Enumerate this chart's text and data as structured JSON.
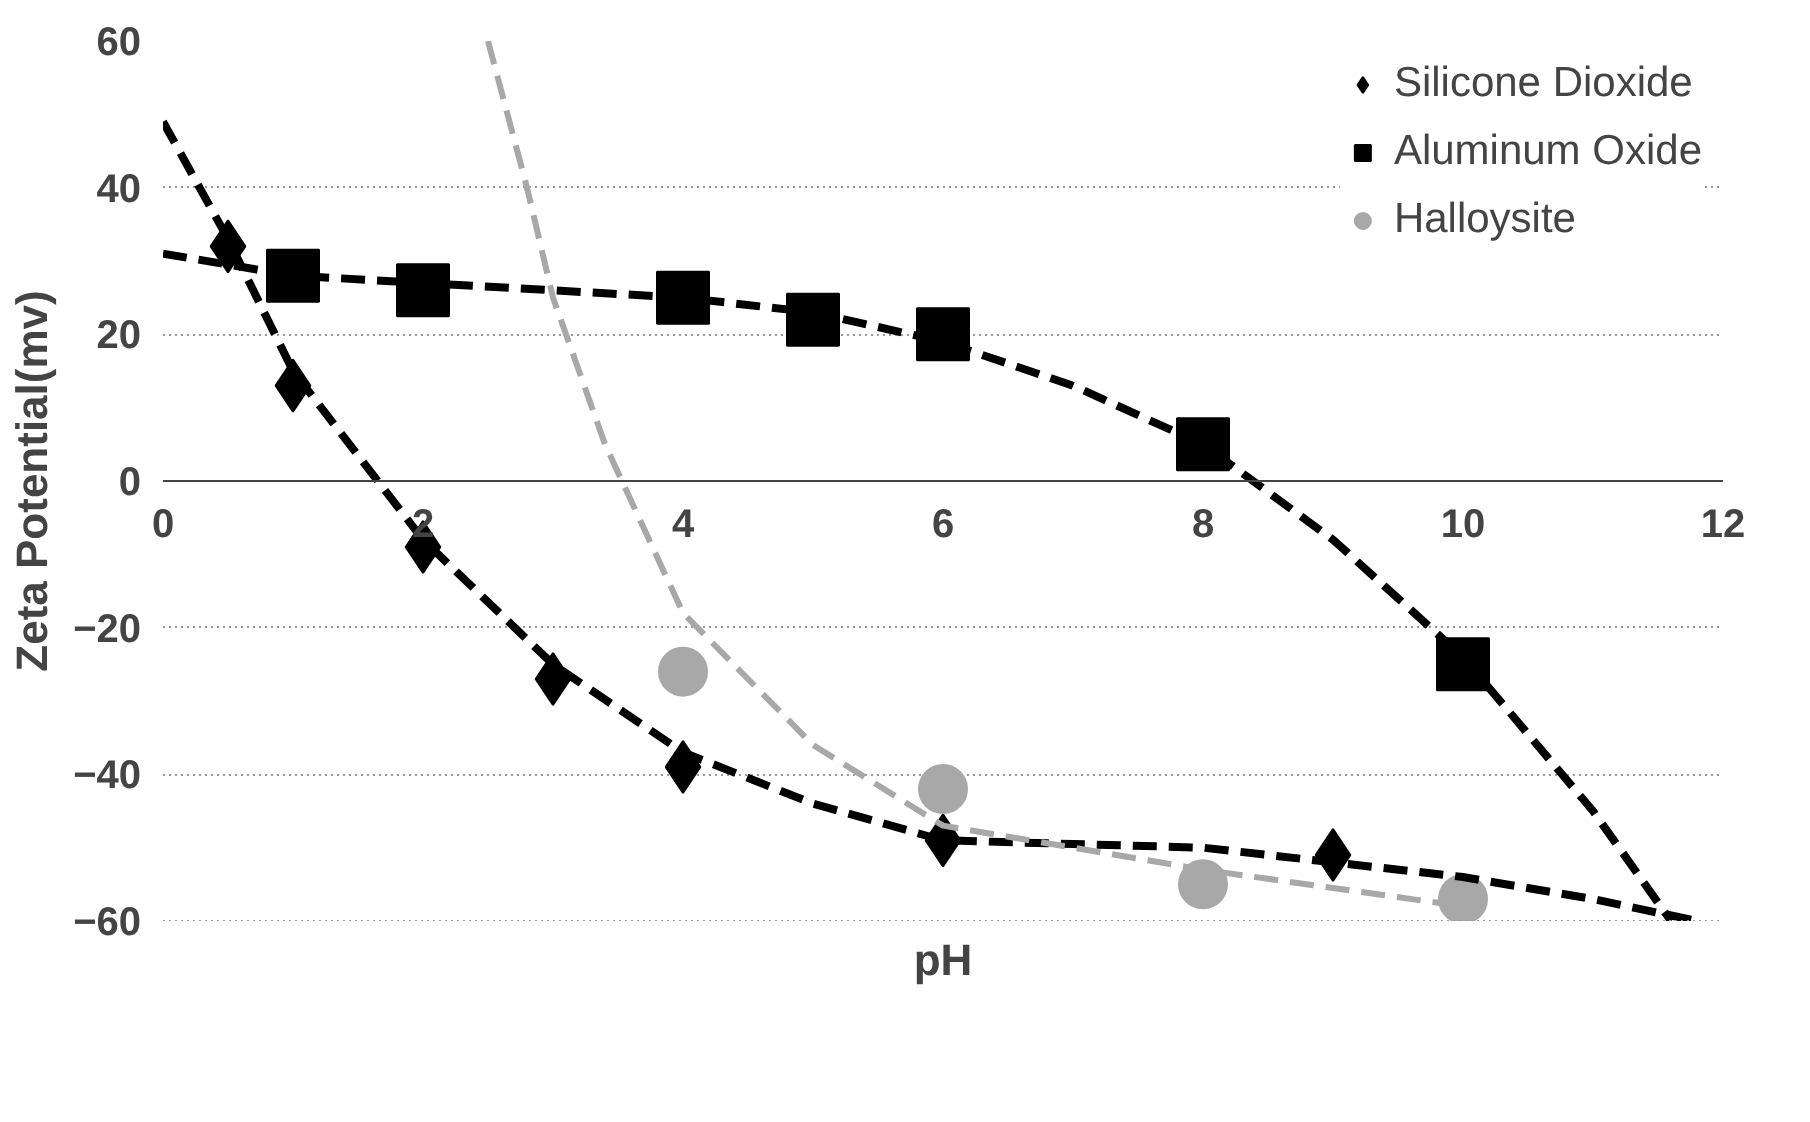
{
  "chart_data": {
    "type": "scatter",
    "xlabel": "pH",
    "ylabel": "Zeta Potential(mv)",
    "xlim": [
      0,
      12
    ],
    "ylim": [
      -60,
      60
    ],
    "xticks": [
      0,
      2,
      4,
      6,
      8,
      10,
      12
    ],
    "yticks": [
      -60,
      -40,
      -20,
      0,
      20,
      40,
      60
    ],
    "grid": "y",
    "legend": "top right",
    "series": [
      {
        "name": "Silicone Dioxide",
        "color": "#000000",
        "marker": "diamond",
        "x": [
          0.5,
          1,
          2,
          3,
          4,
          6,
          9
        ],
        "values": [
          32,
          13,
          -9,
          -27,
          -39,
          -49,
          -51
        ]
      },
      {
        "name": "Aluminum Oxide",
        "color": "#000000",
        "marker": "square",
        "x": [
          1,
          2,
          4,
          5,
          6,
          8,
          10
        ],
        "values": [
          28,
          26,
          25,
          22,
          20,
          5,
          -25
        ]
      },
      {
        "name": "Halloysite",
        "color": "#a8a8a8",
        "marker": "circle",
        "x": [
          4,
          6,
          8,
          10
        ],
        "values": [
          -26,
          -42,
          -55,
          -57
        ]
      },
      {
        "type": "line",
        "color": "#000000",
        "line_style": "dashed",
        "x": [
          0,
          0.5,
          1,
          2,
          3,
          4,
          5,
          6,
          8,
          9,
          10,
          11,
          11.8
        ],
        "values": [
          49,
          33,
          15,
          -8,
          -25,
          -37,
          -44,
          -49,
          -50,
          -52,
          -54,
          -57,
          -60
        ]
      },
      {
        "type": "line",
        "color": "#000000",
        "line_style": "dashed",
        "x": [
          0,
          1,
          2,
          3,
          4,
          5,
          6,
          7,
          8,
          9,
          10,
          11,
          11.6
        ],
        "values": [
          31,
          28,
          27,
          26,
          25,
          23,
          19,
          13,
          5,
          -8,
          -24,
          -45,
          -60
        ]
      },
      {
        "type": "line",
        "color": "#a8a8a8",
        "line_style": "dashed",
        "x": [
          2.5,
          2.8,
          3,
          3.4,
          4,
          5,
          6,
          8,
          10
        ],
        "values": [
          60,
          40,
          25,
          5,
          -18,
          -36,
          -47,
          -53,
          -58
        ]
      }
    ]
  }
}
